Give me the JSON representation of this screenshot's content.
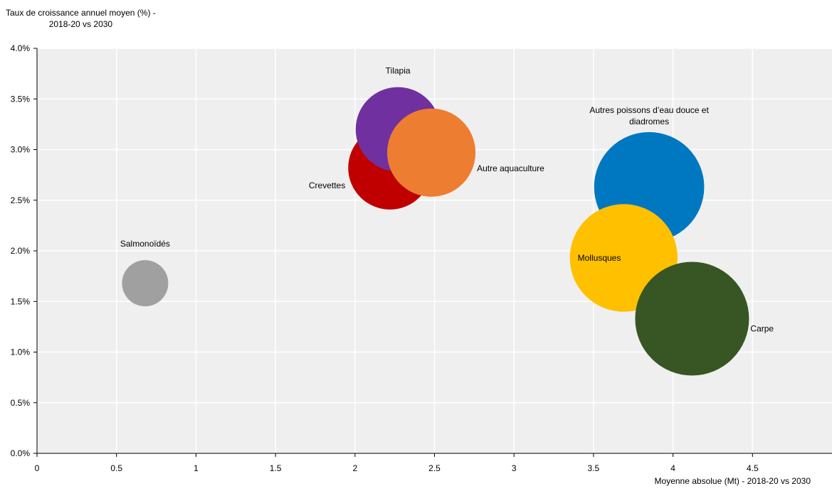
{
  "chart_data": {
    "type": "scatter",
    "ylabel": "Taux de croissance annuel moyen (%) - 2018-20 vs 2030",
    "ylabel_lines": [
      "Taux de croissance annuel moyen (%) -",
      "2018-20 vs 2030"
    ],
    "xlabel": "Moyenne absolue (Mt) - 2018-20 vs 2030",
    "xlim": [
      0,
      5
    ],
    "ylim": [
      0,
      4
    ],
    "x_ticks": [
      "0",
      "0.5",
      "1",
      "1.5",
      "2",
      "2.5",
      "3",
      "3.5",
      "4",
      "4.5"
    ],
    "y_ticks": [
      "0.0%",
      "0.5%",
      "1.0%",
      "1.5%",
      "2.0%",
      "2.5%",
      "3.0%",
      "3.5%",
      "4.0%"
    ],
    "grid": true,
    "points": [
      {
        "label": "Salmonoïdés",
        "x": 0.68,
        "y": 1.68,
        "size": 0.68,
        "color": "#a0a0a0",
        "label_pos": "above"
      },
      {
        "label": "Crevettes",
        "x": 2.22,
        "y": 2.82,
        "size": 2.22,
        "color": "#c00000",
        "label_pos": "left"
      },
      {
        "label": "Tilapia",
        "x": 2.27,
        "y": 3.2,
        "size": 2.27,
        "color": "#7030a0",
        "label_pos": "above"
      },
      {
        "label": "Autre aquaculture",
        "x": 2.48,
        "y": 2.97,
        "size": 2.48,
        "color": "#ed7d31",
        "label_pos": "right"
      },
      {
        "label": "Autres poissons d’eau douce et diadromes",
        "x": 3.85,
        "y": 2.63,
        "size": 3.85,
        "color": "#0078c1",
        "label_pos": "above"
      },
      {
        "label": "Mollusques",
        "x": 3.69,
        "y": 1.93,
        "size": 3.69,
        "color": "#ffc000",
        "label_pos": "left"
      },
      {
        "label": "Carpe",
        "x": 4.12,
        "y": 1.33,
        "size": 4.12,
        "color": "#375623",
        "label_pos": "right"
      }
    ]
  }
}
